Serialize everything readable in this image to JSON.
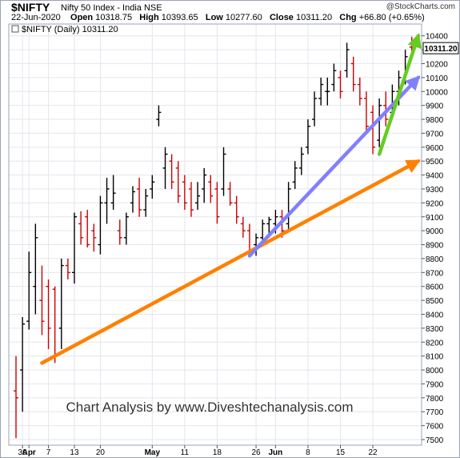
{
  "header": {
    "ticker": "$NIFTY",
    "index_name": "Nifty 50 Index - India",
    "exchange": "NSE",
    "credit": "@StockCharts.com",
    "date": "22-Jun-2020",
    "open_label": "Open",
    "open": "10318.75",
    "high_label": "High",
    "high": "10393.65",
    "low_label": "Low",
    "low": "10277.60",
    "close_label": "Close",
    "close": "10311.20",
    "chg_label": "Chg",
    "chg": "+66.80 (+0.65%)"
  },
  "legend": {
    "label": "$NIFTY (Daily) 10311.20"
  },
  "watermark": "Chart Analysis by www.Diveshtechanalysis.com",
  "colors": {
    "up_bar": "#000000",
    "down_bar": "#cc0000",
    "orange_trend": "#ff8000",
    "blue_trend": "#8080ff",
    "green_trend": "#66cc22",
    "grid": "#e3e6ec",
    "last_price_box": "#000000"
  },
  "chart_data": {
    "type": "ohlc",
    "title": "$NIFTY (Daily) 10311.20",
    "ylim": [
      7500,
      10450
    ],
    "yticks": [
      7500,
      7600,
      7700,
      7800,
      7900,
      8000,
      8100,
      8200,
      8300,
      8400,
      8500,
      8600,
      8700,
      8800,
      8900,
      9000,
      9100,
      9200,
      9300,
      9400,
      9500,
      9600,
      9700,
      9800,
      9900,
      10000,
      10100,
      10200,
      10300,
      10400
    ],
    "x_tick_labels": [
      "30",
      "Apr",
      "7",
      "13",
      "20",
      "May",
      "11",
      "18",
      "26",
      "Jun",
      "8",
      "15",
      "22"
    ],
    "x_tick_session_index": [
      1,
      2,
      5,
      9,
      13,
      21,
      26,
      31,
      37,
      40,
      45,
      50,
      55
    ],
    "last_price_label": "10311.20",
    "grid": true,
    "bars": [
      {
        "o": 7850,
        "h": 8100,
        "l": 7510,
        "c": 7800
      },
      {
        "o": 8000,
        "h": 8380,
        "l": 7700,
        "c": 8330
      },
      {
        "o": 8350,
        "h": 8850,
        "l": 8290,
        "c": 8700
      },
      {
        "o": 8600,
        "h": 9050,
        "l": 8400,
        "c": 8950
      },
      {
        "o": 8500,
        "h": 8750,
        "l": 8250,
        "c": 8350
      },
      {
        "o": 8600,
        "h": 8650,
        "l": 8150,
        "c": 8300
      },
      {
        "o": 8580,
        "h": 8600,
        "l": 8050,
        "c": 8100
      },
      {
        "o": 8300,
        "h": 8800,
        "l": 8150,
        "c": 8750
      },
      {
        "o": 8750,
        "h": 8800,
        "l": 8650,
        "c": 8700
      },
      {
        "o": 8700,
        "h": 9130,
        "l": 8620,
        "c": 9100
      },
      {
        "o": 9050,
        "h": 9140,
        "l": 8900,
        "c": 8950
      },
      {
        "o": 9100,
        "h": 9150,
        "l": 8880,
        "c": 8900
      },
      {
        "o": 9000,
        "h": 9050,
        "l": 8850,
        "c": 8950
      },
      {
        "o": 8900,
        "h": 9250,
        "l": 8830,
        "c": 9200
      },
      {
        "o": 9200,
        "h": 9380,
        "l": 9050,
        "c": 9300
      },
      {
        "o": 9200,
        "h": 9400,
        "l": 9150,
        "c": 9270
      },
      {
        "o": 9000,
        "h": 9080,
        "l": 8900,
        "c": 8950
      },
      {
        "o": 8950,
        "h": 9130,
        "l": 8900,
        "c": 9100
      },
      {
        "o": 9200,
        "h": 9320,
        "l": 9130,
        "c": 9280
      },
      {
        "o": 9300,
        "h": 9380,
        "l": 9100,
        "c": 9150
      },
      {
        "o": 9150,
        "h": 9300,
        "l": 9100,
        "c": 9250
      },
      {
        "o": 9300,
        "h": 9400,
        "l": 9230,
        "c": 9350
      },
      {
        "o": 9800,
        "h": 9900,
        "l": 9750,
        "c": 9850
      },
      {
        "o": 9450,
        "h": 9600,
        "l": 9300,
        "c": 9550
      },
      {
        "o": 9500,
        "h": 9550,
        "l": 9300,
        "c": 9350
      },
      {
        "o": 9450,
        "h": 9500,
        "l": 9200,
        "c": 9250
      },
      {
        "o": 9350,
        "h": 9400,
        "l": 9150,
        "c": 9200
      },
      {
        "o": 9300,
        "h": 9350,
        "l": 9100,
        "c": 9150
      },
      {
        "o": 9200,
        "h": 9350,
        "l": 9150,
        "c": 9250
      },
      {
        "o": 9300,
        "h": 9450,
        "l": 9200,
        "c": 9400
      },
      {
        "o": 9350,
        "h": 9400,
        "l": 9200,
        "c": 9250
      },
      {
        "o": 9300,
        "h": 9350,
        "l": 9050,
        "c": 9100
      },
      {
        "o": 9300,
        "h": 9600,
        "l": 9250,
        "c": 9550
      },
      {
        "o": 9300,
        "h": 9350,
        "l": 9180,
        "c": 9200
      },
      {
        "o": 9200,
        "h": 9250,
        "l": 9050,
        "c": 9100
      },
      {
        "o": 9050,
        "h": 9100,
        "l": 8950,
        "c": 9000
      },
      {
        "o": 9000,
        "h": 9050,
        "l": 8820,
        "c": 8850
      },
      {
        "o": 8900,
        "h": 8980,
        "l": 8820,
        "c": 8950
      },
      {
        "o": 8950,
        "h": 9080,
        "l": 8900,
        "c": 9050
      },
      {
        "o": 9050,
        "h": 9100,
        "l": 8950,
        "c": 9080
      },
      {
        "o": 9050,
        "h": 9150,
        "l": 8980,
        "c": 9100
      },
      {
        "o": 9100,
        "h": 9150,
        "l": 8950,
        "c": 9000
      },
      {
        "o": 9050,
        "h": 9350,
        "l": 9000,
        "c": 9300
      },
      {
        "o": 9350,
        "h": 9500,
        "l": 9300,
        "c": 9450
      },
      {
        "o": 9450,
        "h": 9600,
        "l": 9400,
        "c": 9550
      },
      {
        "o": 9600,
        "h": 9800,
        "l": 9550,
        "c": 9750
      },
      {
        "o": 9800,
        "h": 10000,
        "l": 9750,
        "c": 9950
      },
      {
        "o": 9950,
        "h": 10100,
        "l": 9900,
        "c": 10050
      },
      {
        "o": 10000,
        "h": 10100,
        "l": 9900,
        "c": 10000
      },
      {
        "o": 10050,
        "h": 10200,
        "l": 10000,
        "c": 10150
      },
      {
        "o": 10100,
        "h": 10150,
        "l": 9950,
        "c": 10000
      },
      {
        "o": 10150,
        "h": 10350,
        "l": 10100,
        "c": 10300
      },
      {
        "o": 10200,
        "h": 10250,
        "l": 10000,
        "c": 10050
      },
      {
        "o": 10050,
        "h": 10100,
        "l": 9900,
        "c": 9950
      },
      {
        "o": 9950,
        "h": 10000,
        "l": 9700,
        "c": 9750
      },
      {
        "o": 9850,
        "h": 9900,
        "l": 9550,
        "c": 9600
      },
      {
        "o": 9650,
        "h": 9950,
        "l": 9600,
        "c": 9900
      },
      {
        "o": 9900,
        "h": 10000,
        "l": 9750,
        "c": 9800
      },
      {
        "o": 9850,
        "h": 10050,
        "l": 9800,
        "c": 10000
      },
      {
        "o": 10000,
        "h": 10150,
        "l": 9900,
        "c": 10100
      },
      {
        "o": 10100,
        "h": 10300,
        "l": 10050,
        "c": 10250
      },
      {
        "o": 10318.75,
        "h": 10393.65,
        "l": 10277.6,
        "c": 10311.2
      }
    ],
    "trendlines": [
      {
        "name": "orange",
        "from": [
          4,
          8050
        ],
        "to": [
          62,
          9500
        ]
      },
      {
        "name": "blue",
        "from": [
          36,
          8820
        ],
        "to": [
          62,
          10100
        ]
      },
      {
        "name": "green",
        "from": [
          56,
          9550
        ],
        "to": [
          62,
          10400
        ]
      }
    ]
  }
}
